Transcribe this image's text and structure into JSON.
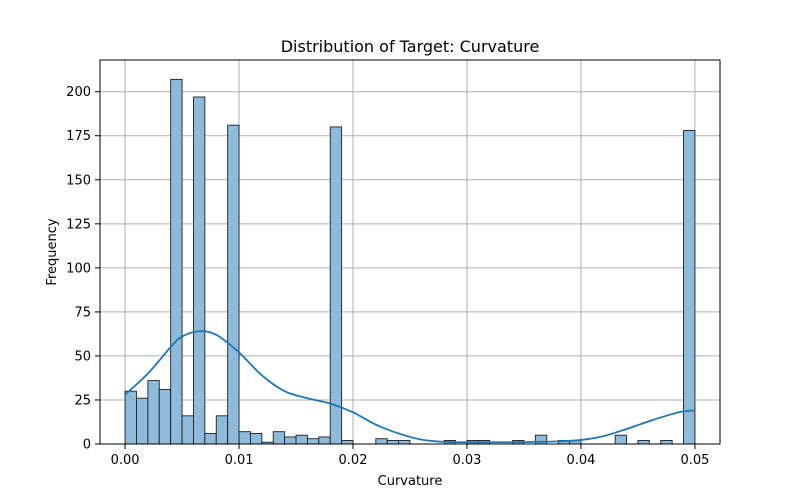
{
  "chart_data": {
    "type": "histogram",
    "title": "Distribution of Target: Curvature",
    "xlabel": "Curvature",
    "ylabel": "Frequency",
    "xlim": [
      -0.0022,
      0.0522
    ],
    "ylim": [
      0,
      218
    ],
    "grid": true,
    "bar_color": "#8ebbdc",
    "bar_edge_color": "#1f1f1f",
    "kde_color": "#1f77b4",
    "bin_start": 0.0,
    "bin_width": 0.001,
    "counts": [
      30,
      26,
      36,
      31,
      207,
      16,
      197,
      6,
      16,
      181,
      7,
      6,
      1,
      7,
      4,
      5,
      3,
      4,
      180,
      2,
      0,
      0,
      3,
      2,
      2,
      0,
      0,
      0,
      2,
      0,
      2,
      2,
      0,
      0,
      2,
      0,
      5,
      0,
      2,
      2,
      0,
      0,
      0,
      5,
      0,
      2,
      0,
      2,
      0,
      178
    ],
    "kde": {
      "x": [
        0.0,
        0.002,
        0.004,
        0.005,
        0.0065,
        0.008,
        0.01,
        0.012,
        0.014,
        0.016,
        0.018,
        0.02,
        0.022,
        0.024,
        0.026,
        0.028,
        0.03,
        0.032,
        0.034,
        0.036,
        0.038,
        0.04,
        0.042,
        0.044,
        0.046,
        0.048,
        0.049,
        0.05
      ],
      "y": [
        28,
        40,
        55,
        61,
        64,
        62,
        52,
        39,
        30,
        26,
        23,
        18,
        11,
        6,
        2.5,
        1.2,
        1,
        1,
        1,
        1.2,
        1.5,
        2.3,
        4.5,
        8.5,
        13,
        17,
        18.5,
        19
      ]
    },
    "x_ticks": [
      {
        "value": 0.0,
        "label": "0.00"
      },
      {
        "value": 0.01,
        "label": "0.01"
      },
      {
        "value": 0.02,
        "label": "0.02"
      },
      {
        "value": 0.03,
        "label": "0.03"
      },
      {
        "value": 0.04,
        "label": "0.04"
      },
      {
        "value": 0.05,
        "label": "0.05"
      }
    ],
    "y_ticks": [
      {
        "value": 0,
        "label": "0"
      },
      {
        "value": 25,
        "label": "25"
      },
      {
        "value": 50,
        "label": "50"
      },
      {
        "value": 75,
        "label": "75"
      },
      {
        "value": 100,
        "label": "100"
      },
      {
        "value": 125,
        "label": "125"
      },
      {
        "value": 150,
        "label": "150"
      },
      {
        "value": 175,
        "label": "175"
      },
      {
        "value": 200,
        "label": "200"
      }
    ]
  }
}
